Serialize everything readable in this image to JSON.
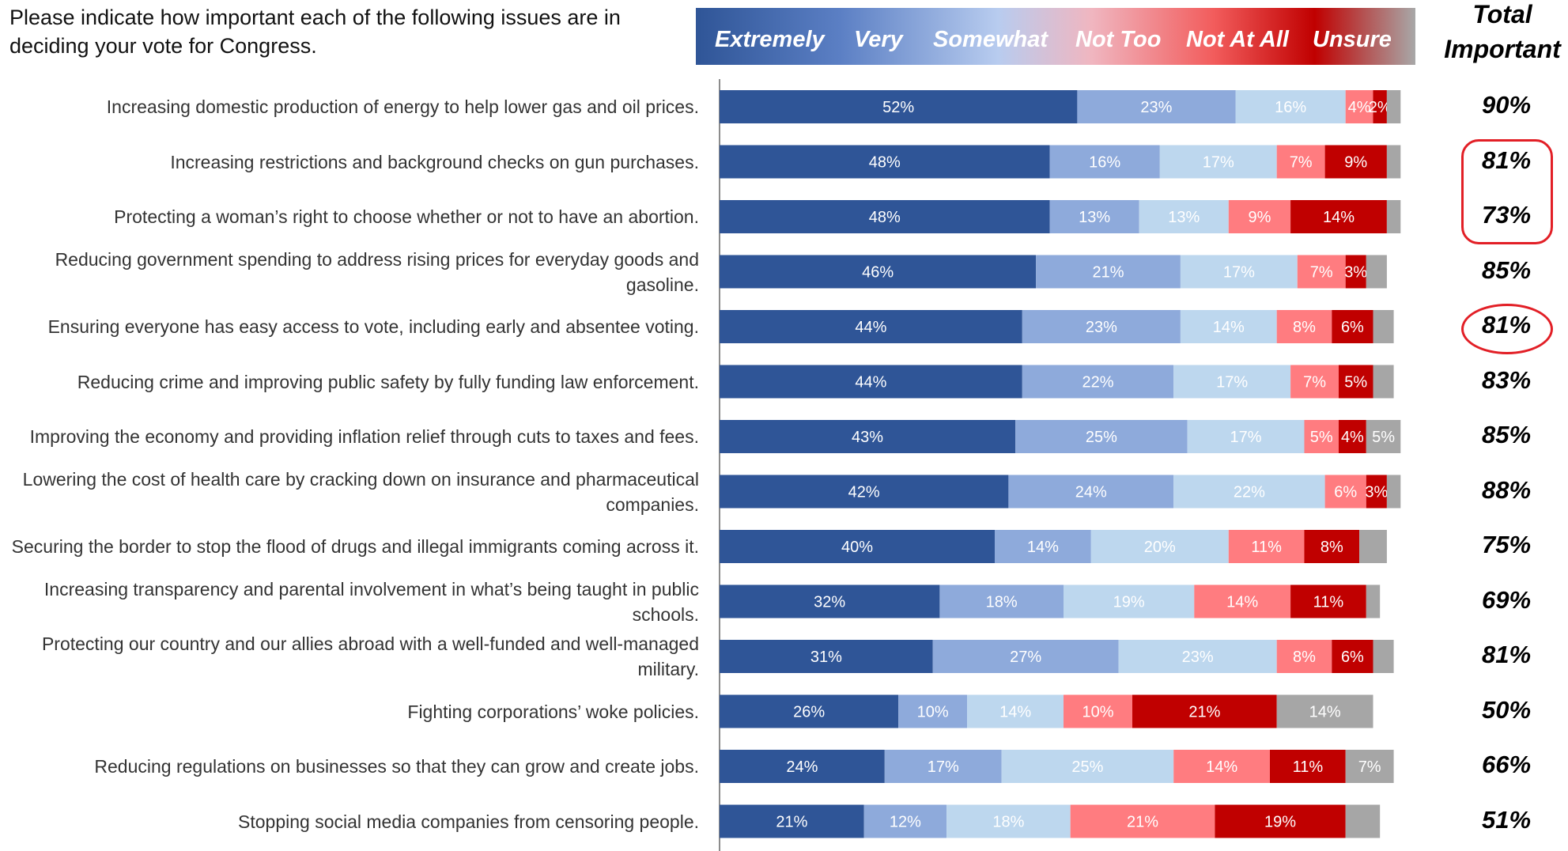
{
  "question": "Please indicate how important each of the following issues are in deciding your vote for Congress.",
  "total_header": [
    "Total",
    "Important"
  ],
  "legend": [
    {
      "label": "Extremely",
      "color": "#2f5597"
    },
    {
      "label": "Very",
      "color": "#8eaadb"
    },
    {
      "label": "Somewhat",
      "color": "#bdd7ee"
    },
    {
      "label": "Not Too",
      "color": "#ff7c80"
    },
    {
      "label": "Not At All",
      "color": "#c00000"
    },
    {
      "label": "Unsure",
      "color": "#a6a6a6"
    }
  ],
  "chart_data": {
    "type": "bar",
    "orientation": "horizontal-stacked-100",
    "categories": [
      "Increasing domestic production of energy to help lower gas and oil prices.",
      "Increasing restrictions and background checks on gun purchases.",
      "Protecting a woman’s right to choose whether or not to have an abortion.",
      "Reducing government spending to address rising prices for everyday goods and gasoline.",
      "Ensuring everyone has easy access to vote, including early and absentee voting.",
      "Reducing crime and improving public safety by fully funding law enforcement.",
      "Improving the economy and providing inflation relief through cuts to taxes and fees.",
      "Lowering the cost of health care by cracking down on insurance and pharmaceutical companies.",
      "Securing the border to stop the flood of drugs and illegal immigrants coming across it.",
      "Increasing transparency and parental involvement in what’s being taught in public schools.",
      "Protecting our country and our allies abroad with a well-funded and well-managed military.",
      "Fighting corporations’ woke policies.",
      "Reducing regulations on businesses so that they can grow and create jobs.",
      "Stopping social media companies from censoring people."
    ],
    "series": [
      {
        "name": "Extremely",
        "values": [
          52,
          48,
          48,
          46,
          44,
          44,
          43,
          42,
          40,
          32,
          31,
          26,
          24,
          21
        ]
      },
      {
        "name": "Very",
        "values": [
          23,
          16,
          13,
          21,
          23,
          22,
          25,
          24,
          14,
          18,
          27,
          10,
          17,
          12
        ]
      },
      {
        "name": "Somewhat",
        "values": [
          16,
          17,
          13,
          17,
          14,
          17,
          17,
          22,
          20,
          19,
          23,
          14,
          25,
          18
        ]
      },
      {
        "name": "Not Too",
        "values": [
          4,
          7,
          9,
          7,
          8,
          7,
          5,
          6,
          11,
          14,
          8,
          10,
          14,
          21
        ]
      },
      {
        "name": "Not At All",
        "values": [
          2,
          9,
          14,
          3,
          6,
          5,
          4,
          3,
          8,
          11,
          6,
          21,
          11,
          19
        ]
      },
      {
        "name": "Unsure",
        "values": [
          2,
          2,
          2,
          3,
          3,
          3,
          5,
          2,
          4,
          2,
          3,
          14,
          7,
          5
        ]
      }
    ],
    "labels_shown": [
      [
        "52%",
        "23%",
        "16%",
        "4%",
        "2%",
        ""
      ],
      [
        "48%",
        "16%",
        "17%",
        "7%",
        "9%",
        ""
      ],
      [
        "48%",
        "13%",
        "13%",
        "9%",
        "14%",
        ""
      ],
      [
        "46%",
        "21%",
        "17%",
        "7%",
        "3%",
        ""
      ],
      [
        "44%",
        "23%",
        "14%",
        "8%",
        "6%",
        ""
      ],
      [
        "44%",
        "22%",
        "17%",
        "7%",
        "5%",
        ""
      ],
      [
        "43%",
        "25%",
        "17%",
        "5%",
        "4%",
        "5%"
      ],
      [
        "42%",
        "24%",
        "22%",
        "6%",
        "3%",
        ""
      ],
      [
        "40%",
        "14%",
        "20%",
        "11%",
        "8%",
        ""
      ],
      [
        "32%",
        "18%",
        "19%",
        "14%",
        "11%",
        ""
      ],
      [
        "31%",
        "27%",
        "23%",
        "8%",
        "6%",
        ""
      ],
      [
        "26%",
        "10%",
        "14%",
        "10%",
        "21%",
        "14%"
      ],
      [
        "24%",
        "17%",
        "25%",
        "14%",
        "11%",
        "7%"
      ],
      [
        "21%",
        "12%",
        "18%",
        "21%",
        "19%",
        ""
      ]
    ],
    "total_important": [
      "90%",
      "81%",
      "73%",
      "85%",
      "81%",
      "83%",
      "85%",
      "88%",
      "75%",
      "69%",
      "81%",
      "50%",
      "66%",
      "51%"
    ],
    "highlighted_totals": [
      [
        1,
        2
      ],
      [
        4
      ]
    ],
    "xlim": [
      0,
      100
    ]
  }
}
